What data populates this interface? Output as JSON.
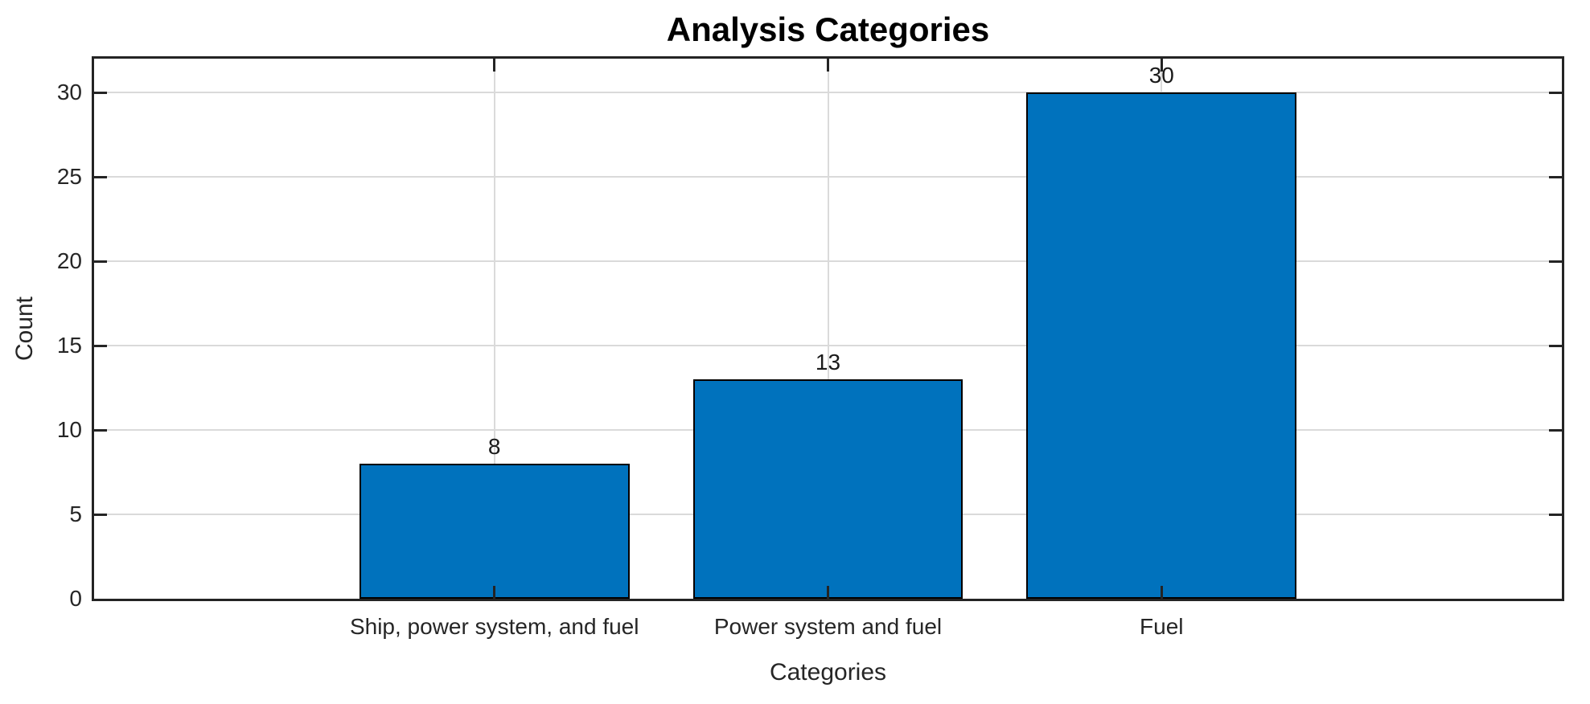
{
  "chart_data": {
    "type": "bar",
    "title": "Analysis Categories",
    "categories": [
      "Ship, power system, and fuel",
      "Power system and fuel",
      "Fuel"
    ],
    "values": [
      8,
      13,
      30
    ],
    "value_labels": [
      "8",
      "13",
      "30"
    ],
    "xlabel": "Categories",
    "ylabel": "Count",
    "yticks": [
      0,
      5,
      10,
      15,
      20,
      25,
      30
    ],
    "ylim": [
      0,
      32
    ],
    "grid": true,
    "legend": "none",
    "colors": {
      "bar_fill": "#0072BD",
      "bar_edge": "#000000",
      "grid": "#dadada",
      "axis": "#242424",
      "tick_text": "#262626",
      "title_text": "#000000"
    }
  }
}
